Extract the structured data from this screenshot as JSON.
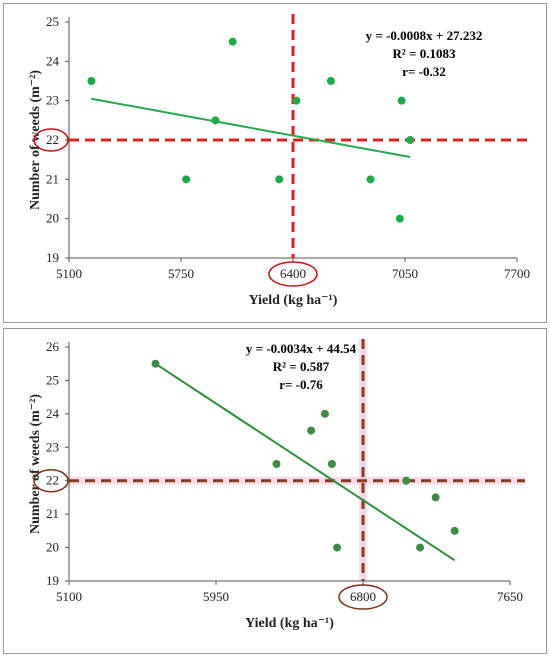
{
  "chart_data": [
    {
      "type": "scatter",
      "xlabel": "Yield (kg ha⁻¹)",
      "ylabel": "Number of weeds (m⁻²)",
      "xlim": [
        5100,
        7700
      ],
      "ylim": [
        19,
        25
      ],
      "xticks": [
        "5100",
        "5750",
        "6400",
        "7050",
        "7700"
      ],
      "yticks": [
        "19",
        "20",
        "21",
        "22",
        "23",
        "24",
        "25"
      ],
      "points": [
        {
          "x": 5230,
          "y": 23.5
        },
        {
          "x": 5780,
          "y": 21.0
        },
        {
          "x": 5950,
          "y": 22.5
        },
        {
          "x": 6050,
          "y": 24.5
        },
        {
          "x": 6320,
          "y": 21.0
        },
        {
          "x": 6420,
          "y": 23.0
        },
        {
          "x": 6620,
          "y": 23.5
        },
        {
          "x": 6850,
          "y": 21.0
        },
        {
          "x": 7020,
          "y": 20.0
        },
        {
          "x": 7030,
          "y": 23.0
        },
        {
          "x": 7080,
          "y": 22.0
        }
      ],
      "trendline": {
        "slope": -0.0008,
        "intercept": 27.232,
        "x_start": 5230,
        "x_end": 7080
      },
      "equation": "y = -0.0008x + 27.232",
      "r2_text": "R² = 0.1083",
      "r_text": "r= -0.32",
      "threshold": {
        "x": 6400,
        "y": 22,
        "x_label": "6400",
        "y_label": "22"
      },
      "colors": {
        "points": "#1aab4a",
        "trend": "#25a84a",
        "threshold": "#e02020",
        "circle": "#cc1111"
      }
    },
    {
      "type": "scatter",
      "xlabel": "Yield (kg ha⁻¹)",
      "ylabel": "Number of weeds (m⁻²)",
      "xlim": [
        5100,
        7650
      ],
      "ylim": [
        19,
        26
      ],
      "xticks": [
        "5100",
        "5950",
        "6800",
        "7650"
      ],
      "yticks": [
        "19",
        "20",
        "21",
        "22",
        "23",
        "24",
        "25",
        "26"
      ],
      "points": [
        {
          "x": 5600,
          "y": 25.5
        },
        {
          "x": 6300,
          "y": 22.5
        },
        {
          "x": 6500,
          "y": 23.5
        },
        {
          "x": 6580,
          "y": 24.0
        },
        {
          "x": 6620,
          "y": 22.5
        },
        {
          "x": 6650,
          "y": 20.0
        },
        {
          "x": 7050,
          "y": 22.0
        },
        {
          "x": 7130,
          "y": 20.0
        },
        {
          "x": 7220,
          "y": 21.5
        },
        {
          "x": 7330,
          "y": 20.5
        }
      ],
      "trendline": {
        "slope": -0.0034,
        "intercept": 44.54,
        "x_start": 5600,
        "x_end": 7330
      },
      "equation": "y = -0.0034x + 44.54",
      "r2_text": "R² = 0.587",
      "r_text": "r= -0.76",
      "threshold": {
        "x": 6800,
        "y": 22,
        "x_label": "6800",
        "y_label": "22"
      },
      "colors": {
        "points": "#3c8c46",
        "trend": "#2f8f3a",
        "threshold": "#8b3a1a",
        "circle": "#7a3018",
        "highlight": "#f5c6dc"
      }
    }
  ]
}
